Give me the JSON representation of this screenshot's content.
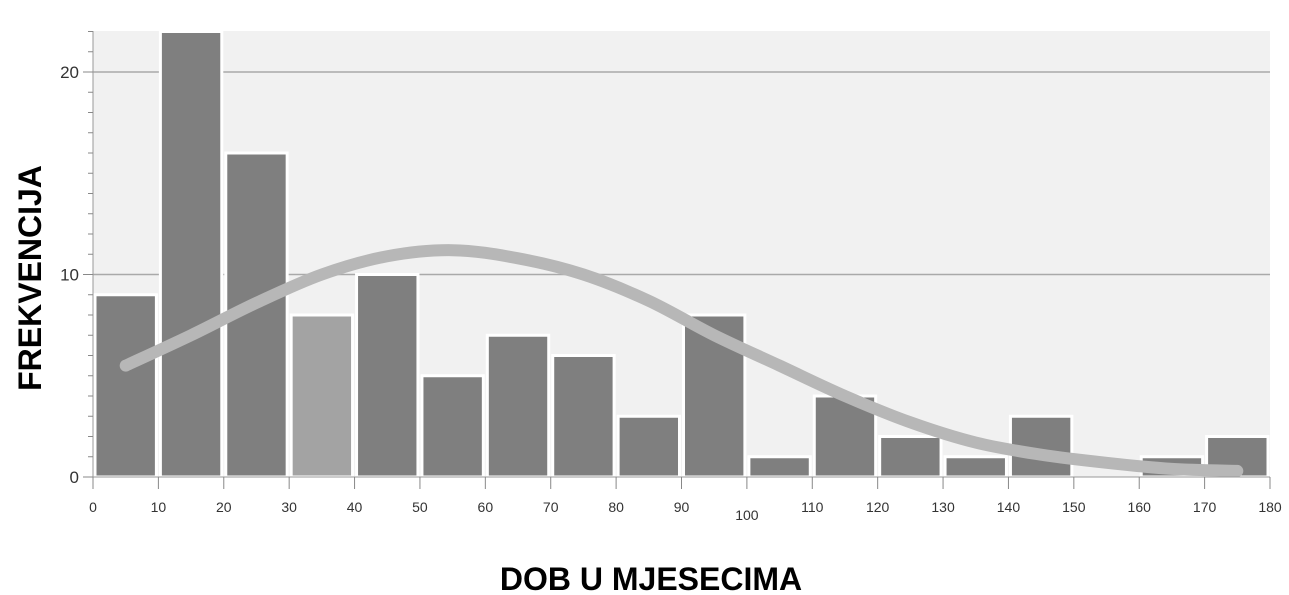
{
  "chart_data": {
    "type": "bar",
    "title": "",
    "xlabel": "DOB U MJESECIMA",
    "ylabel": "FREKVENCIJA",
    "bin_edges": [
      0,
      10,
      20,
      30,
      40,
      50,
      60,
      70,
      80,
      90,
      100,
      110,
      120,
      130,
      140,
      150,
      160,
      170,
      180
    ],
    "values": [
      9,
      22,
      16,
      8,
      10,
      5,
      7,
      6,
      3,
      8,
      1,
      4,
      2,
      1,
      3,
      0,
      1,
      2
    ],
    "highlight_bin_index": 3,
    "xlim": [
      0,
      180
    ],
    "ylim": [
      0,
      22
    ],
    "x_ticks": [
      0,
      10,
      20,
      30,
      40,
      50,
      60,
      70,
      80,
      90,
      100,
      110,
      120,
      130,
      140,
      150,
      160,
      170,
      180
    ],
    "y_ticks": [
      0,
      10,
      20
    ],
    "grid": true,
    "overlay_curve": {
      "type": "line",
      "x": [
        5,
        15,
        25,
        35,
        45,
        55,
        65,
        75,
        85,
        95,
        105,
        115,
        125,
        135,
        145,
        155,
        165,
        175
      ],
      "y": [
        5.5,
        7.0,
        8.6,
        10.0,
        10.9,
        11.2,
        10.8,
        10.0,
        8.7,
        7.0,
        5.5,
        4.0,
        2.7,
        1.7,
        1.1,
        0.7,
        0.4,
        0.3
      ]
    },
    "colors": {
      "bar": "#7f7f7f",
      "bar_highlight": "#a3a3a3",
      "bar_border": "#ffffff",
      "curve": "#b7b7b7",
      "plot_bg": "#f1f1f1",
      "gridline": "#a9a9a9"
    }
  }
}
